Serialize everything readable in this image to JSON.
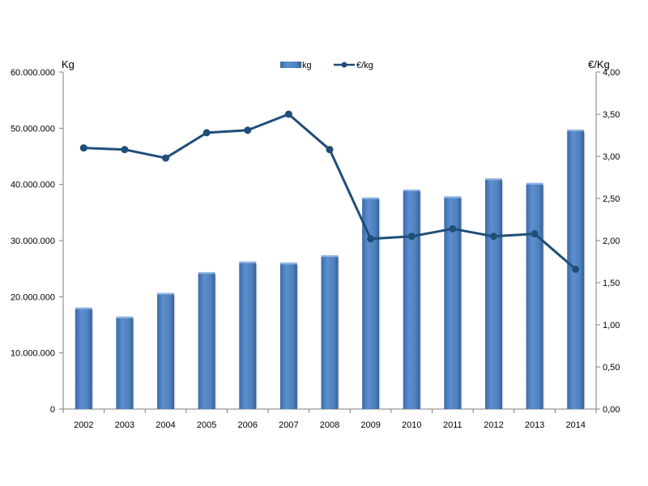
{
  "chart_data": {
    "type": "bar",
    "categories": [
      "2002",
      "2003",
      "2004",
      "2005",
      "2006",
      "2007",
      "2008",
      "2009",
      "2010",
      "2011",
      "2012",
      "2013",
      "2014"
    ],
    "series": [
      {
        "name": "kg",
        "type": "bar",
        "axis": "left",
        "color": "#4f81bd",
        "values": [
          17800000,
          16200000,
          20400000,
          24100000,
          26000000,
          25800000,
          27100000,
          37400000,
          38800000,
          37600000,
          40800000,
          40000000,
          49500000
        ]
      },
      {
        "name": "€/kg",
        "type": "line",
        "axis": "right",
        "color": "#1f4e79",
        "values": [
          3.1,
          3.08,
          2.98,
          3.28,
          3.31,
          3.5,
          3.08,
          2.02,
          2.05,
          2.14,
          2.05,
          2.08,
          1.66
        ]
      }
    ],
    "y_left": {
      "label": "Kg",
      "range": [
        0,
        60000000
      ],
      "tick_labels": [
        "0",
        "10.000.000",
        "20.000.000",
        "30.000.000",
        "40.000.000",
        "50.000.000",
        "60.000.000"
      ]
    },
    "y_right": {
      "label": "€/Kg",
      "range": [
        0,
        4
      ],
      "tick_labels": [
        "0,00",
        "0,50",
        "1,00",
        "1,50",
        "2,00",
        "2,50",
        "3,00",
        "3,50",
        "4,00"
      ]
    },
    "grid": false,
    "legend_position": "top-center",
    "legend": [
      {
        "label": "kg",
        "marker": "bar"
      },
      {
        "label": "€/kg",
        "marker": "line"
      }
    ]
  }
}
